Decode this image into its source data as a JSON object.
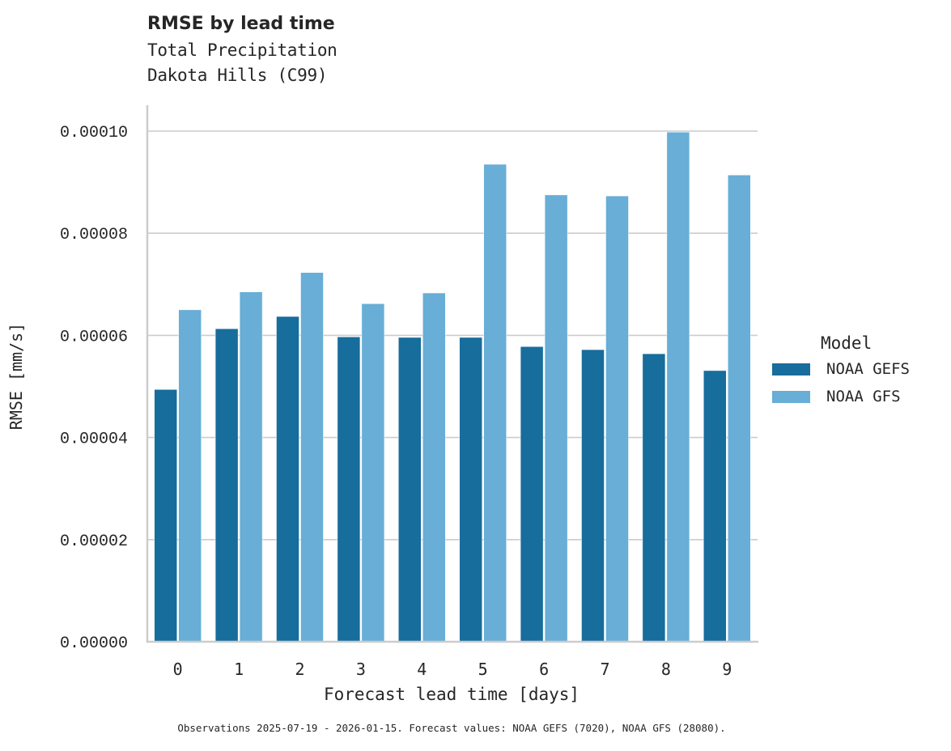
{
  "header": {
    "title": "RMSE by lead time",
    "subtitle_line1": "Total Precipitation",
    "subtitle_line2": "Dakota Hills (C99)"
  },
  "footer": {
    "note": "Observations 2025-07-19 - 2026-01-15. Forecast values: NOAA GEFS (7020), NOAA GFS (28080)."
  },
  "legend": {
    "title": "Model",
    "items": [
      {
        "label": "NOAA GEFS",
        "color": "#176d9c"
      },
      {
        "label": "NOAA GFS",
        "color": "#68aed6"
      }
    ]
  },
  "chart_data": {
    "type": "bar",
    "title": "RMSE by lead time",
    "subtitle": "Total Precipitation\nDakota Hills (C99)",
    "xlabel": "Forecast lead time [days]",
    "ylabel": "RMSE [mm/s]",
    "categories": [
      "0",
      "1",
      "2",
      "3",
      "4",
      "5",
      "6",
      "7",
      "8",
      "9"
    ],
    "series": [
      {
        "name": "NOAA GEFS",
        "color": "#176d9c",
        "values": [
          4.94e-05,
          6.13e-05,
          6.37e-05,
          5.97e-05,
          5.96e-05,
          5.96e-05,
          5.78e-05,
          5.72e-05,
          5.64e-05,
          5.31e-05
        ]
      },
      {
        "name": "NOAA GFS",
        "color": "#68aed6",
        "values": [
          6.5e-05,
          6.85e-05,
          7.23e-05,
          6.62e-05,
          6.83e-05,
          9.35e-05,
          8.75e-05,
          8.73e-05,
          9.98e-05,
          9.14e-05
        ]
      }
    ],
    "yticks": [
      0,
      2e-05,
      4e-05,
      6e-05,
      8e-05,
      0.0001
    ],
    "ytick_labels": [
      "0.00000",
      "0.00002",
      "0.00004",
      "0.00006",
      "0.00008",
      "0.00010"
    ],
    "ylim": [
      0,
      0.000105
    ],
    "grid": "horizontal",
    "legend_position": "right",
    "legend_title": "Model"
  }
}
